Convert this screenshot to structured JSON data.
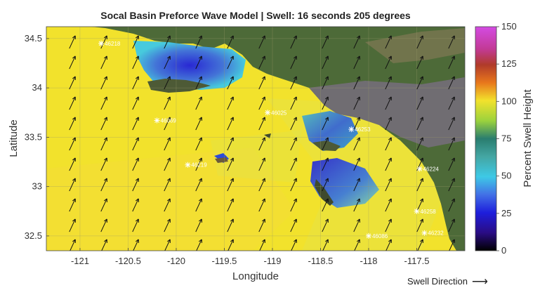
{
  "title": "Socal Basin Preforce Wave Model | Swell: 16 seconds 205 degrees",
  "axes": {
    "xlabel": "Longitude",
    "ylabel": "Latitude",
    "xticks": [
      "-121",
      "-120.5",
      "-120",
      "-119.5",
      "-119",
      "-118.5",
      "-118",
      "-117.5"
    ],
    "yticks": [
      "34.5",
      "34",
      "33.5",
      "33",
      "32.5"
    ],
    "xlim": [
      -121.35,
      -117.0
    ],
    "ylim": [
      32.35,
      34.62
    ]
  },
  "colorbar": {
    "label": "Percent Swell Height",
    "ticks": [
      "150",
      "125",
      "100",
      "75",
      "50",
      "25",
      "0"
    ],
    "range": [
      0,
      150
    ]
  },
  "swell": {
    "direction_label": "Swell Direction",
    "direction_arrow": "⟶",
    "period_seconds": 16,
    "direction_degrees": 205
  },
  "buoys": [
    {
      "id": "46218",
      "lon": -120.78,
      "lat": 34.45
    },
    {
      "id": "46069",
      "lon": -120.2,
      "lat": 33.67
    },
    {
      "id": "46219",
      "lon": -119.88,
      "lat": 33.22
    },
    {
      "id": "46025",
      "lon": -119.05,
      "lat": 33.75
    },
    {
      "id": "46253",
      "lon": -118.18,
      "lat": 33.58
    },
    {
      "id": "46224",
      "lon": -117.47,
      "lat": 33.18
    },
    {
      "id": "46258",
      "lon": -117.5,
      "lat": 32.75
    },
    {
      "id": "46086",
      "lon": -118.0,
      "lat": 32.5
    },
    {
      "id": "46232",
      "lon": -117.42,
      "lat": 32.53
    }
  ],
  "colors": {
    "ocean_base": "#f2e22c",
    "sheltered_deep": "#1e1edc",
    "sheltered_mid": "#3ec9e6",
    "land": "#4d6a38",
    "urban": "#7c6f86"
  }
}
